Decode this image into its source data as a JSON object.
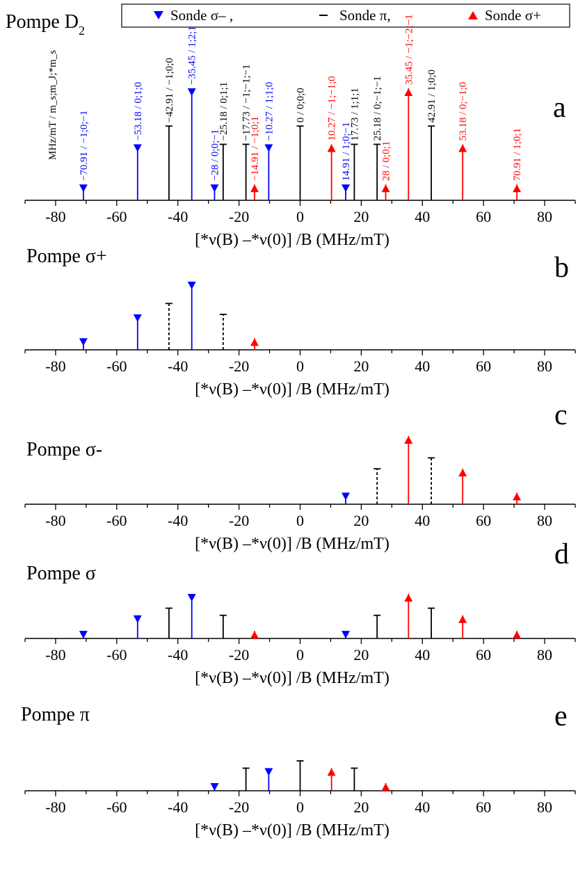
{
  "header": {
    "pump_main": "Pompe D",
    "pump_sub": "2"
  },
  "legend": {
    "items": [
      {
        "label": "Sonde σ– ,",
        "color": "#0000ff",
        "marker": "triangle-down"
      },
      {
        "label": "Sonde π,",
        "color": "#000000",
        "marker": "dash"
      },
      {
        "label": "Sonde σ+",
        "color": "#ff0000",
        "marker": "triangle-up"
      }
    ]
  },
  "colors": {
    "sigma_minus": "#0000ff",
    "pi": "#000000",
    "sigma_plus": "#ff0000"
  },
  "chart_data": [
    {
      "panel": "a",
      "type": "stem",
      "title": "",
      "letter": "a",
      "xlabel": "[*ν(B) –*ν(0)] /B  (MHz/mT)",
      "xlim": [
        -90,
        90
      ],
      "xticks": [
        "-80",
        "-60",
        "-40",
        "-20",
        "0",
        "20",
        "40",
        "60",
        "80"
      ],
      "ylim": [
        0,
        1
      ],
      "annotation_header": "MHz/mT / m_s;m_J;*m_s",
      "stems": [
        {
          "x": -70.91,
          "y": 0.13,
          "probe": "sigma_minus",
          "label": "−70.91 / −1;0;−1",
          "dashed": false
        },
        {
          "x": -53.18,
          "y": 0.46,
          "probe": "sigma_minus",
          "label": "−53.18 / 0;1;0",
          "dashed": false
        },
        {
          "x": -42.91,
          "y": 0.61,
          "probe": "pi",
          "label": "−42.91 / −1;0;0",
          "dashed": false
        },
        {
          "x": -35.45,
          "y": 0.92,
          "probe": "sigma_minus",
          "label": "−35.45 / 1;2;1",
          "dashed": false
        },
        {
          "x": -28,
          "y": 0.13,
          "probe": "sigma_minus",
          "label": "−28 / 0;0;−1",
          "dashed": false
        },
        {
          "x": -25.18,
          "y": 0.46,
          "probe": "pi",
          "label": "−25.18 / 0;1;1",
          "dashed": false
        },
        {
          "x": -17.73,
          "y": 0.46,
          "probe": "pi",
          "label": "−17.73 / −1;−1;−1",
          "dashed": false
        },
        {
          "x": -14.91,
          "y": 0.13,
          "probe": "sigma_plus",
          "label": "−14.91 / −1;0;1",
          "dashed": false
        },
        {
          "x": -10.27,
          "y": 0.46,
          "probe": "sigma_minus",
          "label": "−10.27 / 1;1;0",
          "dashed": false
        },
        {
          "x": 0,
          "y": 0.61,
          "probe": "pi",
          "label": "0 / 0;0;0",
          "dashed": false
        },
        {
          "x": 10.27,
          "y": 0.46,
          "probe": "sigma_plus",
          "label": "10.27 / −1;−1;0",
          "dashed": false
        },
        {
          "x": 14.91,
          "y": 0.13,
          "probe": "sigma_minus",
          "label": "14.91 / 1;0;−1",
          "dashed": false
        },
        {
          "x": 17.73,
          "y": 0.46,
          "probe": "pi",
          "label": "17.73 / 1;1;1",
          "dashed": false
        },
        {
          "x": 25.18,
          "y": 0.46,
          "probe": "pi",
          "label": "25.18 / 0;−1;−1",
          "dashed": false
        },
        {
          "x": 28,
          "y": 0.13,
          "probe": "sigma_plus",
          "label": "28 / 0;0;1",
          "dashed": false
        },
        {
          "x": 35.45,
          "y": 0.92,
          "probe": "sigma_plus",
          "label": "35.45 / −1;−2;−1",
          "dashed": false
        },
        {
          "x": 42.91,
          "y": 0.61,
          "probe": "pi",
          "label": "42.91 / 1;0;0",
          "dashed": false
        },
        {
          "x": 53.18,
          "y": 0.46,
          "probe": "sigma_plus",
          "label": "53.18 / 0;−1;0",
          "dashed": false
        },
        {
          "x": 70.91,
          "y": 0.13,
          "probe": "sigma_plus",
          "label": "70.91 / 1;0;1",
          "dashed": false
        }
      ]
    },
    {
      "panel": "b",
      "type": "stem",
      "title": "Pompe σ+",
      "letter": "b",
      "xlabel": "[*ν(B) –*ν(0)] /B  (MHz/mT)",
      "xlim": [
        -90,
        90
      ],
      "xticks": [
        "-80",
        "-60",
        "-40",
        "-20",
        "0",
        "20",
        "40",
        "60",
        "80"
      ],
      "ylim": [
        0,
        1
      ],
      "stems": [
        {
          "x": -70.91,
          "y": 0.17,
          "probe": "sigma_minus",
          "dashed": false
        },
        {
          "x": -53.18,
          "y": 0.52,
          "probe": "sigma_minus",
          "dashed": false
        },
        {
          "x": -42.91,
          "y": 0.68,
          "probe": "pi",
          "dashed": true
        },
        {
          "x": -35.45,
          "y": 1.0,
          "probe": "sigma_minus",
          "dashed": false
        },
        {
          "x": -25.18,
          "y": 0.52,
          "probe": "pi",
          "dashed": true
        },
        {
          "x": -14.91,
          "y": 0.17,
          "probe": "sigma_plus",
          "dashed": false
        }
      ]
    },
    {
      "panel": "c",
      "type": "stem",
      "title": "Pompe σ-",
      "letter": "c",
      "xlabel": "[*ν(B) –*ν(0)] /B  (MHz/mT)",
      "xlim": [
        -90,
        90
      ],
      "xticks": [
        "-80",
        "-60",
        "-40",
        "-20",
        "0",
        "20",
        "40",
        "60",
        "80"
      ],
      "ylim": [
        0,
        1
      ],
      "stems": [
        {
          "x": 14.91,
          "y": 0.17,
          "probe": "sigma_minus",
          "dashed": false
        },
        {
          "x": 25.18,
          "y": 0.52,
          "probe": "pi",
          "dashed": true
        },
        {
          "x": 35.45,
          "y": 1.0,
          "probe": "sigma_plus",
          "dashed": false
        },
        {
          "x": 42.91,
          "y": 0.68,
          "probe": "pi",
          "dashed": true
        },
        {
          "x": 53.18,
          "y": 0.52,
          "probe": "sigma_plus",
          "dashed": false
        },
        {
          "x": 70.91,
          "y": 0.17,
          "probe": "sigma_plus",
          "dashed": false
        }
      ]
    },
    {
      "panel": "d",
      "type": "stem",
      "title": "Pompe σ",
      "letter": "d",
      "xlabel": "[*ν(B) –*ν(0)] /B  (MHz/mT)",
      "xlim": [
        -90,
        90
      ],
      "xticks": [
        "-80",
        "-60",
        "-40",
        "-20",
        "0",
        "20",
        "40",
        "60",
        "80"
      ],
      "ylim": [
        0,
        1
      ],
      "stems": [
        {
          "x": -70.91,
          "y": 0.17,
          "probe": "sigma_minus",
          "dashed": false
        },
        {
          "x": -53.18,
          "y": 0.52,
          "probe": "sigma_minus",
          "dashed": false
        },
        {
          "x": -42.91,
          "y": 0.68,
          "probe": "pi",
          "dashed": false
        },
        {
          "x": -35.45,
          "y": 1.0,
          "probe": "sigma_minus",
          "dashed": false
        },
        {
          "x": -25.18,
          "y": 0.52,
          "probe": "pi",
          "dashed": false
        },
        {
          "x": -14.91,
          "y": 0.17,
          "probe": "sigma_plus",
          "dashed": false
        },
        {
          "x": 14.91,
          "y": 0.17,
          "probe": "sigma_minus",
          "dashed": false
        },
        {
          "x": 25.18,
          "y": 0.52,
          "probe": "pi",
          "dashed": false
        },
        {
          "x": 35.45,
          "y": 1.0,
          "probe": "sigma_plus",
          "dashed": false
        },
        {
          "x": 42.91,
          "y": 0.68,
          "probe": "pi",
          "dashed": false
        },
        {
          "x": 53.18,
          "y": 0.52,
          "probe": "sigma_plus",
          "dashed": false
        },
        {
          "x": 70.91,
          "y": 0.17,
          "probe": "sigma_plus",
          "dashed": false
        }
      ]
    },
    {
      "panel": "e",
      "type": "stem",
      "title": "Pompe π",
      "letter": "e",
      "xlabel": "[*ν(B) –*ν(0)] /B  (MHz/mT)",
      "xlim": [
        -90,
        90
      ],
      "xticks": [
        "-80",
        "-60",
        "-40",
        "-20",
        "0",
        "20",
        "40",
        "60",
        "80"
      ],
      "ylim": [
        0,
        1
      ],
      "stems": [
        {
          "x": -28,
          "y": 0.22,
          "probe": "sigma_minus",
          "dashed": false
        },
        {
          "x": -17.73,
          "y": 0.65,
          "probe": "pi",
          "dashed": false
        },
        {
          "x": -10.27,
          "y": 0.65,
          "probe": "sigma_minus",
          "dashed": false
        },
        {
          "x": 0,
          "y": 0.86,
          "probe": "pi",
          "dashed": false
        },
        {
          "x": 10.27,
          "y": 0.65,
          "probe": "sigma_plus",
          "dashed": false
        },
        {
          "x": 17.73,
          "y": 0.65,
          "probe": "pi",
          "dashed": false
        },
        {
          "x": 28,
          "y": 0.22,
          "probe": "sigma_plus",
          "dashed": false
        }
      ]
    }
  ]
}
